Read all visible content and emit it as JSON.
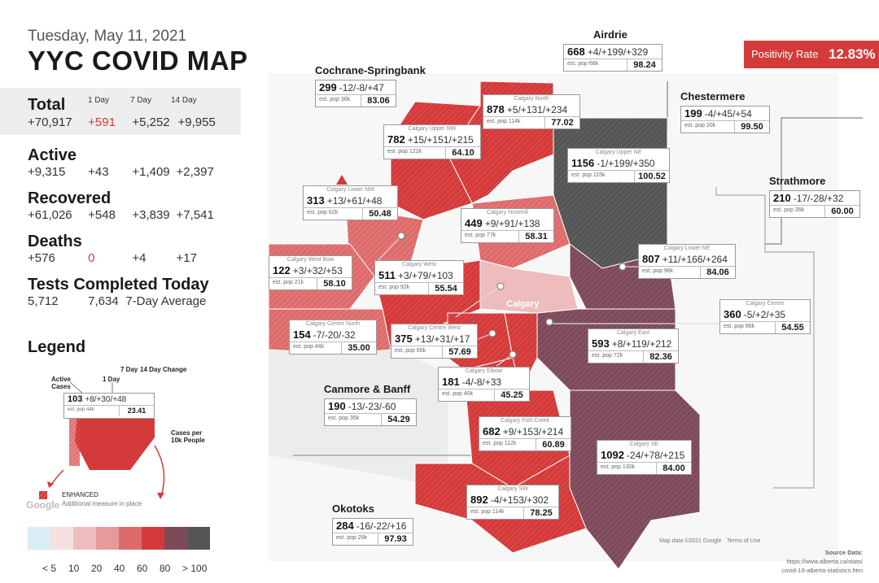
{
  "header": {
    "date": "Tuesday, May 11, 2021",
    "title": "YYC COVID MAP"
  },
  "columns": {
    "d1": "1 Day",
    "d7": "7 Day",
    "d14": "14 Day"
  },
  "stats": {
    "total": {
      "label": "Total",
      "value": "+70,917",
      "d1": "+591",
      "d7": "+5,252",
      "d14": "+9,955"
    },
    "active": {
      "label": "Active",
      "value": "+9,315",
      "d1": "+43",
      "d7": "+1,409",
      "d14": "+2,397"
    },
    "recovered": {
      "label": "Recovered",
      "value": "+61,026",
      "d1": "+548",
      "d7": "+3,839",
      "d14": "+7,541"
    },
    "deaths": {
      "label": "Deaths",
      "value": "+576",
      "d1": "0",
      "d7": "+4",
      "d14": "+17"
    },
    "tests": {
      "label": "Tests Completed Today",
      "value": "5,712",
      "avg": "7,634",
      "avg_label": "7-Day Average"
    }
  },
  "legend": {
    "title": "Legend",
    "active_cases": "Active\nCases",
    "d1": "1 Day",
    "d7": "7 Day",
    "d14": "14 Day Change",
    "example_row": {
      "active": "103",
      "changes": "+8/+30/+48",
      "pop": "est. pop 44k",
      "rate": "23.41"
    },
    "cases_per": "Cases per\n10k People",
    "enhanced": "ENHANCED",
    "enhanced_sub": "Additional measure in place",
    "scale_colors": [
      "#d8eef4",
      "#f6e0e0",
      "#eebcbc",
      "#e69a9a",
      "#de6b6b",
      "#d43a3a",
      "#7d4a5a",
      "#555555"
    ],
    "scale_labels": [
      "< 5",
      "10",
      "20",
      "40",
      "60",
      "80",
      "> 100"
    ]
  },
  "positivity": {
    "label": "Positivity Rate",
    "value": "12.83%"
  },
  "source": {
    "line1": "Source Data:",
    "line2": "https://www.alberta.ca/stats/",
    "line3": "covid-19-alberta-statistics.htm"
  },
  "map_labels": {
    "calgary": "Calgary",
    "google": "Google",
    "terms": "Terms of Use",
    "map_data": "Map data ©2021 Google"
  },
  "regions": [
    {
      "id": "airdrie",
      "title": "Airdrie",
      "active": "668",
      "changes": "+4/+199/+329",
      "pop": "est. pop 68k",
      "rate": "98.24"
    },
    {
      "id": "cochrane",
      "title": "Cochrane-Springbank",
      "active": "299",
      "changes": "-12/-8/+47",
      "pop": "est. pop 36k",
      "rate": "83.06"
    },
    {
      "id": "chestermere",
      "title": "Chestermere",
      "active": "199",
      "changes": "-4/+45/+54",
      "pop": "est. pop 20k",
      "rate": "99.50"
    },
    {
      "id": "strathmore",
      "title": "Strathmore",
      "active": "210",
      "changes": "-17/-28/+32",
      "pop": "est. pop 35k",
      "rate": "60.00"
    },
    {
      "id": "canmore",
      "title": "Canmore & Banff",
      "active": "190",
      "changes": "-13/-23/-60",
      "pop": "est. pop 35k",
      "rate": "54.29"
    },
    {
      "id": "okotoks",
      "title": "Okotoks",
      "active": "284",
      "changes": "-16/-22/+16",
      "pop": "est. pop 29k",
      "rate": "97.93"
    },
    {
      "id": "calgary-north",
      "name": "Calgary North",
      "active": "878",
      "changes": "+5/+131/+234",
      "pop": "est. pop 114k",
      "rate": "77.02"
    },
    {
      "id": "calgary-upper-nw",
      "name": "Calgary Upper NW",
      "active": "782",
      "changes": "+15/+151/+215",
      "pop": "est. pop 122k",
      "rate": "64.10"
    },
    {
      "id": "calgary-upper-ne",
      "name": "Calgary Upper NE",
      "active": "1156",
      "changes": "-1/+199/+350",
      "pop": "est. pop 115k",
      "rate": "100.52"
    },
    {
      "id": "calgary-lower-nw",
      "name": "Calgary Lower NW",
      "active": "313",
      "changes": "+13/+61/+48",
      "pop": "est. pop 62k",
      "rate": "50.48"
    },
    {
      "id": "calgary-nosehill",
      "name": "Calgary Nosehill",
      "active": "449",
      "changes": "+9/+91/+138",
      "pop": "est. pop 77k",
      "rate": "58.31"
    },
    {
      "id": "calgary-lower-ne",
      "name": "Calgary Lower NE",
      "active": "807",
      "changes": "+11/+166/+264",
      "pop": "est. pop 96k",
      "rate": "84.06"
    },
    {
      "id": "calgary-west-bow",
      "name": "Calgary West Bow",
      "active": "122",
      "changes": "+3/+32/+53",
      "pop": "est. pop 21k",
      "rate": "58.10"
    },
    {
      "id": "calgary-west",
      "name": "Calgary West",
      "active": "511",
      "changes": "+3/+79/+103",
      "pop": "est. pop 92k",
      "rate": "55.54"
    },
    {
      "id": "calgary-centre",
      "name": "Calgary Centre",
      "active": "360",
      "changes": "-5/+2/+35",
      "pop": "est. pop 66k",
      "rate": "54.55"
    },
    {
      "id": "calgary-centre-north",
      "name": "Calgary Centre North",
      "active": "154",
      "changes": "-7/-20/-32",
      "pop": "est. pop 44k",
      "rate": "35.00"
    },
    {
      "id": "calgary-centre-west",
      "name": "Calgary Centre West",
      "active": "375",
      "changes": "+13/+31/+17",
      "pop": "est. pop 65k",
      "rate": "57.69"
    },
    {
      "id": "calgary-east",
      "name": "Calgary East",
      "active": "593",
      "changes": "+8/+119/+212",
      "pop": "est. pop 72k",
      "rate": "82.36"
    },
    {
      "id": "calgary-elbow",
      "name": "Calgary Elbow",
      "active": "181",
      "changes": "-4/-8/+33",
      "pop": "est. pop 40k",
      "rate": "45.25"
    },
    {
      "id": "calgary-fish-creek",
      "name": "Calgary Fish Creek",
      "active": "682",
      "changes": "+9/+153/+214",
      "pop": "est. pop 112k",
      "rate": "60.89"
    },
    {
      "id": "calgary-se",
      "name": "Calgary SE",
      "active": "1092",
      "changes": "-24/+78/+215",
      "pop": "est. pop 130k",
      "rate": "84.00"
    },
    {
      "id": "calgary-sw",
      "name": "Calgary SW",
      "active": "892",
      "changes": "-4/+153/+302",
      "pop": "est. pop 114k",
      "rate": "78.25"
    }
  ]
}
